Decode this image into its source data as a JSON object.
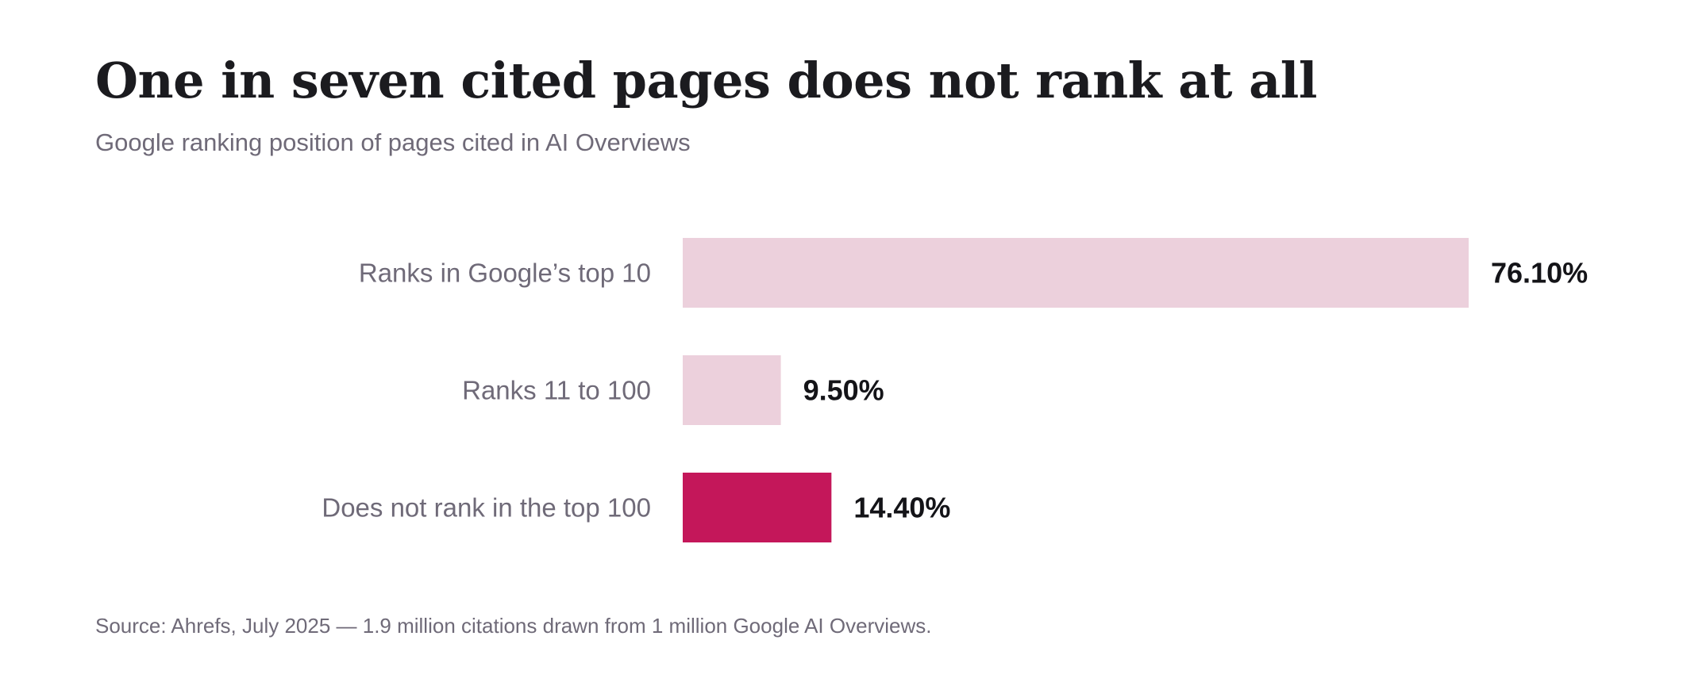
{
  "chart_data": {
    "type": "bar",
    "orientation": "horizontal",
    "title": "One in seven cited pages does not rank at all",
    "subtitle": "Google ranking position of pages cited in AI Overviews",
    "categories": [
      "Ranks in Google’s top 10",
      "Ranks 11 to 100",
      "Does not rank in the top 100"
    ],
    "values": [
      76.1,
      9.5,
      14.4
    ],
    "value_labels": [
      "76.10%",
      "9.50%",
      "14.40%"
    ],
    "bar_colors": [
      "#ecd0dc",
      "#ecd0dc",
      "#c4175a"
    ],
    "xlim": [
      0,
      76.1
    ],
    "xlabel": "",
    "ylabel": "",
    "grid": false,
    "legend": "none",
    "source": "Source: Ahrefs, July 2025 — 1.9 million citations drawn from 1 million Google AI Overviews."
  }
}
